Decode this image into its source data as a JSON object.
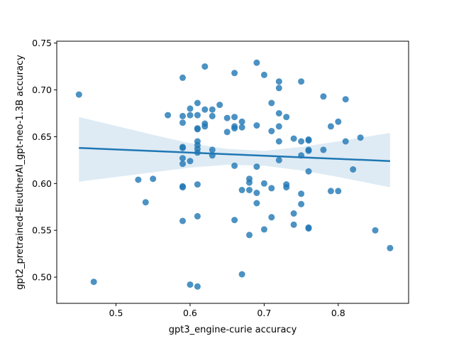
{
  "chart_data": {
    "type": "scatter",
    "title": "",
    "xlabel": "gpt3_engine-curie accuracy",
    "ylabel": "gpt2_pretrained-EleutherAI_gpt-neo-1.3B accuracy",
    "xlim": [
      0.42,
      0.895
    ],
    "ylim": [
      0.472,
      0.752
    ],
    "xticks": [
      0.5,
      0.6,
      0.7,
      0.8
    ],
    "xtick_labels": [
      "0.5",
      "0.6",
      "0.7",
      "0.8"
    ],
    "yticks": [
      0.5,
      0.55,
      0.6,
      0.65,
      0.7,
      0.75
    ],
    "ytick_labels": [
      "0.50",
      "0.55",
      "0.60",
      "0.65",
      "0.70",
      "0.75"
    ],
    "grid": false,
    "legend": "none",
    "colors": {
      "points": "#1f77b4",
      "line": "#1f77b4",
      "band": "#1f77b4"
    },
    "points": [
      [
        0.45,
        0.695
      ],
      [
        0.47,
        0.495
      ],
      [
        0.53,
        0.604
      ],
      [
        0.54,
        0.58
      ],
      [
        0.55,
        0.605
      ],
      [
        0.57,
        0.673
      ],
      [
        0.59,
        0.713
      ],
      [
        0.59,
        0.672
      ],
      [
        0.59,
        0.665
      ],
      [
        0.59,
        0.639
      ],
      [
        0.59,
        0.638
      ],
      [
        0.59,
        0.627
      ],
      [
        0.59,
        0.621
      ],
      [
        0.59,
        0.597
      ],
      [
        0.59,
        0.596
      ],
      [
        0.59,
        0.56
      ],
      [
        0.6,
        0.68
      ],
      [
        0.6,
        0.673
      ],
      [
        0.6,
        0.624
      ],
      [
        0.6,
        0.492
      ],
      [
        0.61,
        0.686
      ],
      [
        0.61,
        0.673
      ],
      [
        0.61,
        0.659
      ],
      [
        0.61,
        0.658
      ],
      [
        0.61,
        0.645
      ],
      [
        0.61,
        0.641
      ],
      [
        0.61,
        0.637
      ],
      [
        0.61,
        0.633
      ],
      [
        0.61,
        0.599
      ],
      [
        0.61,
        0.565
      ],
      [
        0.61,
        0.49
      ],
      [
        0.62,
        0.725
      ],
      [
        0.62,
        0.679
      ],
      [
        0.62,
        0.664
      ],
      [
        0.62,
        0.661
      ],
      [
        0.63,
        0.679
      ],
      [
        0.63,
        0.672
      ],
      [
        0.63,
        0.636
      ],
      [
        0.63,
        0.63
      ],
      [
        0.64,
        0.684
      ],
      [
        0.65,
        0.67
      ],
      [
        0.65,
        0.655
      ],
      [
        0.66,
        0.718
      ],
      [
        0.66,
        0.671
      ],
      [
        0.66,
        0.661
      ],
      [
        0.66,
        0.659
      ],
      [
        0.66,
        0.619
      ],
      [
        0.66,
        0.561
      ],
      [
        0.67,
        0.666
      ],
      [
        0.67,
        0.66
      ],
      [
        0.67,
        0.593
      ],
      [
        0.67,
        0.503
      ],
      [
        0.68,
        0.605
      ],
      [
        0.68,
        0.601
      ],
      [
        0.68,
        0.593
      ],
      [
        0.68,
        0.545
      ],
      [
        0.69,
        0.729
      ],
      [
        0.69,
        0.662
      ],
      [
        0.69,
        0.618
      ],
      [
        0.69,
        0.59
      ],
      [
        0.69,
        0.579
      ],
      [
        0.7,
        0.716
      ],
      [
        0.7,
        0.6
      ],
      [
        0.7,
        0.551
      ],
      [
        0.71,
        0.686
      ],
      [
        0.71,
        0.656
      ],
      [
        0.71,
        0.595
      ],
      [
        0.71,
        0.564
      ],
      [
        0.72,
        0.709
      ],
      [
        0.72,
        0.702
      ],
      [
        0.72,
        0.675
      ],
      [
        0.72,
        0.661
      ],
      [
        0.72,
        0.645
      ],
      [
        0.72,
        0.625
      ],
      [
        0.73,
        0.671
      ],
      [
        0.73,
        0.599
      ],
      [
        0.73,
        0.596
      ],
      [
        0.74,
        0.648
      ],
      [
        0.74,
        0.568
      ],
      [
        0.74,
        0.556
      ],
      [
        0.75,
        0.709
      ],
      [
        0.75,
        0.645
      ],
      [
        0.75,
        0.63
      ],
      [
        0.75,
        0.589
      ],
      [
        0.75,
        0.578
      ],
      [
        0.76,
        0.647
      ],
      [
        0.76,
        0.646
      ],
      [
        0.76,
        0.636
      ],
      [
        0.76,
        0.635
      ],
      [
        0.76,
        0.613
      ],
      [
        0.76,
        0.553
      ],
      [
        0.76,
        0.552
      ],
      [
        0.78,
        0.693
      ],
      [
        0.78,
        0.636
      ],
      [
        0.79,
        0.661
      ],
      [
        0.79,
        0.592
      ],
      [
        0.8,
        0.666
      ],
      [
        0.8,
        0.592
      ],
      [
        0.81,
        0.69
      ],
      [
        0.81,
        0.645
      ],
      [
        0.82,
        0.615
      ],
      [
        0.83,
        0.649
      ],
      [
        0.85,
        0.55
      ],
      [
        0.87,
        0.531
      ]
    ],
    "regression": {
      "x_range": [
        0.45,
        0.87
      ],
      "y_at_start": 0.638,
      "y_at_end": 0.624,
      "ci_upper": [
        [
          0.45,
          0.671
        ],
        [
          0.55,
          0.652
        ],
        [
          0.6,
          0.643
        ],
        [
          0.65,
          0.637
        ],
        [
          0.7,
          0.635
        ],
        [
          0.75,
          0.639
        ],
        [
          0.8,
          0.645
        ],
        [
          0.87,
          0.654
        ]
      ],
      "ci_lower": [
        [
          0.45,
          0.602
        ],
        [
          0.55,
          0.612
        ],
        [
          0.6,
          0.617
        ],
        [
          0.65,
          0.62
        ],
        [
          0.7,
          0.619
        ],
        [
          0.75,
          0.614
        ],
        [
          0.8,
          0.607
        ],
        [
          0.87,
          0.596
        ]
      ]
    }
  }
}
